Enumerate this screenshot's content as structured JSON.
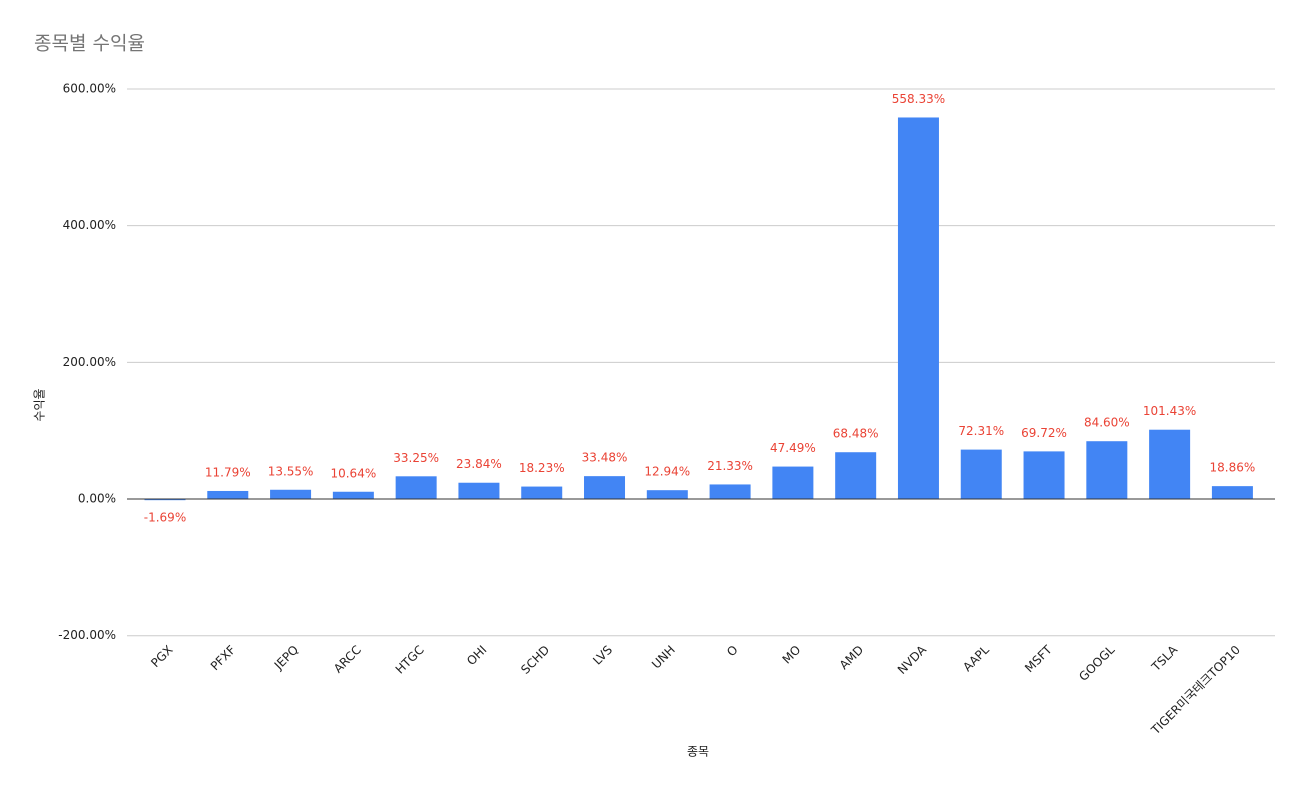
{
  "chart_data": {
    "type": "bar",
    "title": "종목별 수익율",
    "x_label": "종목",
    "y_label": "수익율",
    "categories": [
      "PGX",
      "PFXF",
      "JEPQ",
      "ARCC",
      "HTGC",
      "OHI",
      "SCHD",
      "LVS",
      "UNH",
      "O",
      "MO",
      "AMD",
      "NVDA",
      "AAPL",
      "MSFT",
      "GOOGL",
      "TSLA",
      "TIGER미국테크TOP10"
    ],
    "values": [
      -1.69,
      11.79,
      13.55,
      10.64,
      33.25,
      23.84,
      18.23,
      33.48,
      12.94,
      21.33,
      47.49,
      68.48,
      558.33,
      72.31,
      69.72,
      84.6,
      101.43,
      18.86
    ],
    "value_labels": [
      "-1.69%",
      "11.79%",
      "13.55%",
      "10.64%",
      "33.25%",
      "23.84%",
      "18.23%",
      "33.48%",
      "12.94%",
      "21.33%",
      "47.49%",
      "68.48%",
      "558.33%",
      "72.31%",
      "69.72%",
      "84.60%",
      "101.43%",
      "18.86%"
    ],
    "color": "#4285f4",
    "label_color": "#ea4335",
    "ylim": [
      -200,
      600
    ],
    "yticks": [
      {
        "value": -200,
        "label": "-200.00%"
      },
      {
        "value": 0,
        "label": "0.00%"
      },
      {
        "value": 200,
        "label": "200.00%"
      },
      {
        "value": 400,
        "label": "400.00%"
      },
      {
        "value": 600,
        "label": "600.00%"
      }
    ],
    "grid": true
  }
}
